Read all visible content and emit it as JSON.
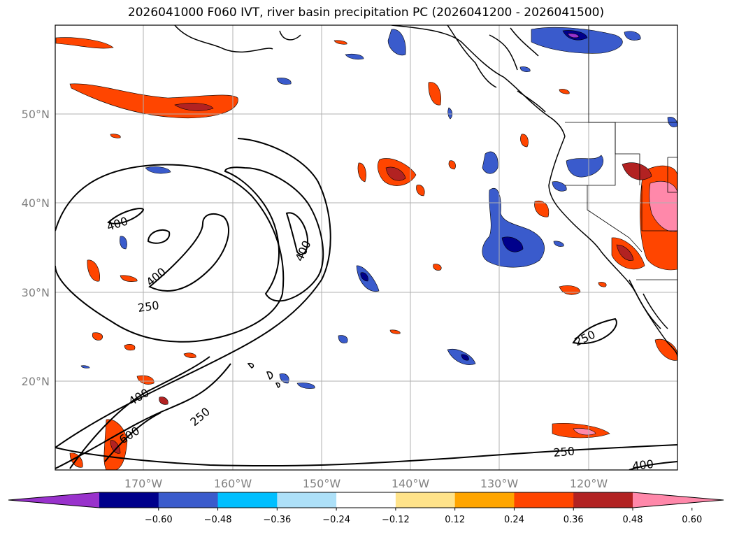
{
  "title": "2026041000 F060 IVT, river basin precipitation PC (2026041200 - 2026041500)",
  "map": {
    "lon_labels": [
      "170°W",
      "160°W",
      "150°W",
      "140°W",
      "130°W",
      "120°W"
    ],
    "lat_labels": [
      "50°N",
      "40°N",
      "30°N",
      "20°N"
    ],
    "gridlines": true,
    "ivt_contour_labels": [
      "400",
      "400",
      "400",
      "250",
      "400",
      "600",
      "250",
      "250",
      "250",
      "400"
    ]
  },
  "colorbar": {
    "ticks": [
      "−0.60",
      "−0.48",
      "−0.36",
      "−0.24",
      "−0.12",
      "0.12",
      "0.24",
      "0.36",
      "0.48",
      "0.60"
    ],
    "colors": [
      "#9932CC",
      "#00008B",
      "#3A5BCC",
      "#00BFFF",
      "#ADE0F8",
      "#FFFFFF",
      "#FFE38A",
      "#FFA500",
      "#FF4500",
      "#B22222",
      "#FF88AA"
    ]
  }
}
